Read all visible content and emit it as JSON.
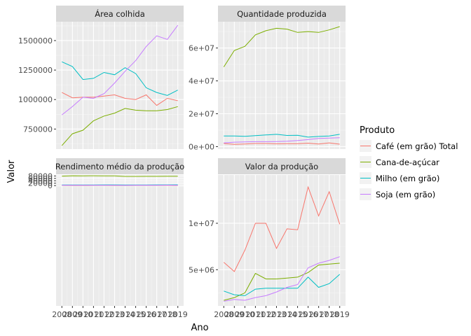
{
  "chart_data": {
    "type": "line",
    "xlabel": "Ano",
    "ylabel": "Valor",
    "x": [
      2008,
      2009,
      2010,
      2011,
      2012,
      2013,
      2014,
      2015,
      2016,
      2017,
      2018,
      2019
    ],
    "x_tick_labels": [
      "2008",
      "2009",
      "2010",
      "2011",
      "2012",
      "2013",
      "2014",
      "2015",
      "2016",
      "2017",
      "2018",
      "2019"
    ],
    "legend": {
      "title": "Produto",
      "position": "right"
    },
    "colors": {
      "Café (em grão) Total": "#F8766D",
      "Cana-de-açúcar": "#7CAE00",
      "Milho (em grão)": "#00BFC4",
      "Soja (em grão)": "#C77CFF"
    },
    "series_names": [
      "Café (em grão) Total",
      "Cana-de-açúcar",
      "Milho (em grão)",
      "Soja (em grão)"
    ],
    "panels": [
      {
        "title": "Área colhida",
        "ylim": [
          580000,
          1660000
        ],
        "y_ticks": [
          750000,
          1000000,
          1250000,
          1500000
        ],
        "y_tick_labels": [
          "750000",
          "1000000",
          "1250000",
          "1500000"
        ],
        "series": [
          {
            "name": "Café (em grão) Total",
            "values": [
              1060000,
              1015000,
              1020000,
              1020000,
              1030000,
              1040000,
              1010000,
              1000000,
              1040000,
              950000,
              1010000,
              990000
            ]
          },
          {
            "name": "Cana-de-açúcar",
            "values": [
              610000,
              710000,
              740000,
              820000,
              860000,
              885000,
              925000,
              910000,
              905000,
              905000,
              915000,
              940000
            ]
          },
          {
            "name": "Milho (em grão)",
            "values": [
              1320000,
              1280000,
              1170000,
              1180000,
              1230000,
              1210000,
              1270000,
              1220000,
              1100000,
              1060000,
              1035000,
              1080000
            ]
          },
          {
            "name": "Soja (em grão)",
            "values": [
              870000,
              940000,
              1020000,
              1010000,
              1050000,
              1140000,
              1240000,
              1330000,
              1450000,
              1540000,
              1510000,
              1630000
            ]
          }
        ]
      },
      {
        "title": "Quantidade produzida",
        "ylim": [
          -1500000,
          76000000
        ],
        "y_ticks": [
          0,
          20000000,
          40000000,
          60000000
        ],
        "y_tick_labels": [
          "0e+00",
          "2e+07",
          "4e+07",
          "6e+07"
        ],
        "series": [
          {
            "name": "Café (em grão) Total",
            "values": [
              1900000,
              1400000,
              1600000,
              1900000,
              1900000,
              1700000,
              1800000,
              1800000,
              2100000,
              1600000,
              2300000,
              1500000
            ]
          },
          {
            "name": "Cana-de-açúcar",
            "values": [
              48500000,
              58500000,
              61000000,
              68000000,
              70500000,
              72000000,
              71500000,
              69500000,
              70000000,
              69500000,
              71000000,
              73000000
            ]
          },
          {
            "name": "Milho (em grão)",
            "values": [
              6500000,
              6500000,
              6300000,
              6700000,
              7100000,
              7500000,
              6800000,
              6900000,
              5800000,
              6200000,
              6500000,
              7500000
            ]
          },
          {
            "name": "Soja (em grão)",
            "values": [
              2300000,
              2700000,
              2900000,
              3000000,
              3000000,
              3100000,
              3300000,
              3700000,
              4300000,
              5000000,
              5200000,
              5400000
            ]
          }
        ]
      },
      {
        "title": "Rendimento médio da produção",
        "ylim": [
          -1000000,
          88000
        ],
        "y_ticks": [
          0,
          20000,
          40000,
          60000,
          80000
        ],
        "y_tick_labels": [
          "0",
          "20000",
          "40000",
          "60000",
          "80000"
        ],
        "series": [
          {
            "name": "Café (em grão) Total",
            "values": [
              1800,
              1600,
              1600,
              1700,
              1700,
              1600,
              1600,
              1700,
              1800,
              1700,
              2200,
              1500
            ]
          },
          {
            "name": "Cana-de-açúcar",
            "values": [
              78500,
              81500,
              81000,
              81500,
              81000,
              80500,
              76500,
              76500,
              77000,
              77000,
              77500,
              77500
            ]
          },
          {
            "name": "Milho (em grão)",
            "values": [
              5200,
              5100,
              5300,
              5500,
              5900,
              6000,
              5400,
              5600,
              5200,
              5900,
              6200,
              6800
            ]
          },
          {
            "name": "Soja (em grão)",
            "values": [
              2800,
              2900,
              2800,
              2900,
              2900,
              2800,
              2700,
              2800,
              2900,
              3100,
              3400,
              3300
            ]
          }
        ]
      },
      {
        "title": "Valor da produção",
        "ylim": [
          1100000,
          15200000
        ],
        "y_ticks": [
          5000000,
          10000000
        ],
        "y_tick_labels": [
          "5e+06",
          "1e+07"
        ],
        "series": [
          {
            "name": "Café (em grão) Total",
            "values": [
              5800000,
              4800000,
              7100000,
              10000000,
              10000000,
              7300000,
              9400000,
              9300000,
              13900000,
              10800000,
              13400000,
              9900000
            ]
          },
          {
            "name": "Cana-de-açúcar",
            "values": [
              1700000,
              2000000,
              2500000,
              4600000,
              4000000,
              4000000,
              4100000,
              4200000,
              4700000,
              5500000,
              5600000,
              5700000
            ]
          },
          {
            "name": "Milho (em grão)",
            "values": [
              2700000,
              2300000,
              2200000,
              2900000,
              3000000,
              3000000,
              3000000,
              3000000,
              4200000,
              3100000,
              3500000,
              4500000
            ]
          },
          {
            "name": "Soja (em grão)",
            "values": [
              1600000,
              1800000,
              1700000,
              2000000,
              2200000,
              2600000,
              3100000,
              3400000,
              5200000,
              5700000,
              6000000,
              6400000
            ]
          }
        ]
      }
    ]
  }
}
